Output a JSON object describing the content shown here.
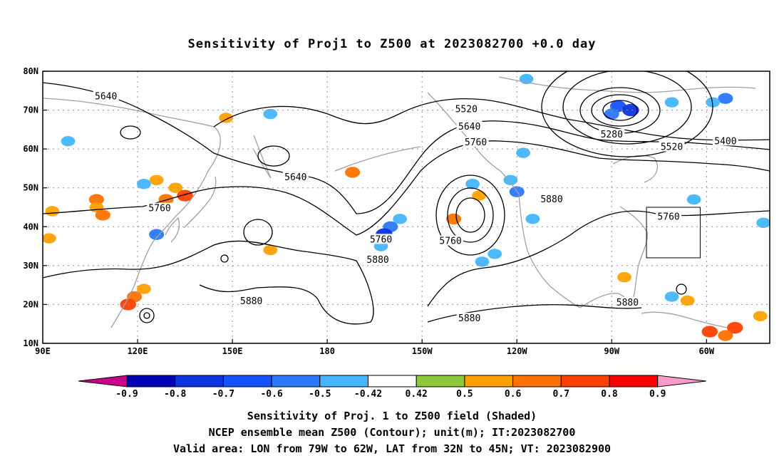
{
  "title": "Sensitivity of Proj1 to Z500 at 2023082700 +0.0 day",
  "lat_axis": {
    "labels": [
      "80N",
      "70N",
      "60N",
      "50N",
      "40N",
      "30N",
      "20N",
      "10N"
    ],
    "values": [
      80,
      70,
      60,
      50,
      40,
      30,
      20,
      10
    ]
  },
  "lon_axis": {
    "labels": [
      "90E",
      "120E",
      "150E",
      "180",
      "150W",
      "120W",
      "90W",
      "60W"
    ],
    "values": [
      90,
      120,
      150,
      180,
      210,
      240,
      270,
      300
    ]
  },
  "map_extent": {
    "lon_min": 90,
    "lon_max": 320,
    "lat_min": 10,
    "lat_max": 80
  },
  "contour_labels": [
    {
      "text": "5640",
      "lon": 110,
      "lat": 73.3
    },
    {
      "text": "5520",
      "lon": 224,
      "lat": 70.0
    },
    {
      "text": "5640",
      "lon": 225,
      "lat": 65.5
    },
    {
      "text": "5760",
      "lon": 227,
      "lat": 61.5
    },
    {
      "text": "5280",
      "lon": 270,
      "lat": 63.5
    },
    {
      "text": "5520",
      "lon": 289,
      "lat": 60.3
    },
    {
      "text": "5400",
      "lon": 306,
      "lat": 61.8
    },
    {
      "text": "5640",
      "lon": 170,
      "lat": 52.5
    },
    {
      "text": "5760",
      "lon": 127,
      "lat": 44.5
    },
    {
      "text": "5760",
      "lon": 197,
      "lat": 36.5
    },
    {
      "text": "5880",
      "lon": 196,
      "lat": 31.3
    },
    {
      "text": "5760",
      "lon": 219,
      "lat": 36.1
    },
    {
      "text": "5880",
      "lon": 251,
      "lat": 46.8
    },
    {
      "text": "5760",
      "lon": 288,
      "lat": 42.3
    },
    {
      "text": "5880",
      "lon": 156,
      "lat": 20.6
    },
    {
      "text": "5880",
      "lon": 225,
      "lat": 16.2
    },
    {
      "text": "5880",
      "lon": 275,
      "lat": 20.3
    }
  ],
  "valid_box": {
    "lon_w": 79,
    "lon_e": 62,
    "lat_s": 32,
    "lat_n": 45
  },
  "shading": [
    {
      "lon": 107,
      "lat": 47,
      "v": 0.6
    },
    {
      "lon": 107,
      "lat": 45,
      "v": 0.5
    },
    {
      "lon": 109,
      "lat": 43,
      "v": 0.6
    },
    {
      "lon": 93,
      "lat": 44,
      "v": 0.5
    },
    {
      "lon": 92,
      "lat": 37,
      "v": 0.5
    },
    {
      "lon": 98,
      "lat": 62,
      "v": -0.5
    },
    {
      "lon": 126,
      "lat": 52,
      "v": 0.5
    },
    {
      "lon": 132,
      "lat": 50,
      "v": 0.5
    },
    {
      "lon": 129,
      "lat": 47,
      "v": 0.6
    },
    {
      "lon": 135,
      "lat": 48,
      "v": 0.7
    },
    {
      "lon": 122,
      "lat": 51,
      "v": -0.5
    },
    {
      "lon": 126,
      "lat": 38,
      "v": -0.6
    },
    {
      "lon": 122,
      "lat": 24,
      "v": 0.5
    },
    {
      "lon": 119,
      "lat": 22,
      "v": 0.6
    },
    {
      "lon": 117,
      "lat": 20,
      "v": 0.7
    },
    {
      "lon": 148,
      "lat": 68,
      "v": 0.5
    },
    {
      "lon": 162,
      "lat": 69,
      "v": -0.5
    },
    {
      "lon": 188,
      "lat": 54,
      "v": 0.6
    },
    {
      "lon": 200,
      "lat": 40,
      "v": -0.6
    },
    {
      "lon": 198,
      "lat": 38,
      "v": -0.8
    },
    {
      "lon": 203,
      "lat": 42,
      "v": -0.5
    },
    {
      "lon": 197,
      "lat": 35,
      "v": -0.5
    },
    {
      "lon": 233,
      "lat": 33,
      "v": -0.5
    },
    {
      "lon": 229,
      "lat": 31,
      "v": -0.5
    },
    {
      "lon": 220,
      "lat": 42,
      "v": 0.6
    },
    {
      "lon": 240,
      "lat": 49,
      "v": -0.6
    },
    {
      "lon": 238,
      "lat": 52,
      "v": -0.5
    },
    {
      "lon": 245,
      "lat": 42,
      "v": -0.5
    },
    {
      "lon": 272,
      "lat": 71,
      "v": -0.7
    },
    {
      "lon": 276,
      "lat": 70,
      "v": -0.8
    },
    {
      "lon": 270,
      "lat": 69,
      "v": -0.6
    },
    {
      "lon": 306,
      "lat": 73,
      "v": -0.6
    },
    {
      "lon": 302,
      "lat": 72,
      "v": -0.5
    },
    {
      "lon": 289,
      "lat": 72,
      "v": -0.5
    },
    {
      "lon": 243,
      "lat": 78,
      "v": -0.5
    },
    {
      "lon": 242,
      "lat": 59,
      "v": -0.5
    },
    {
      "lon": 226,
      "lat": 51,
      "v": -0.5
    },
    {
      "lon": 228,
      "lat": 48,
      "v": 0.5
    },
    {
      "lon": 309,
      "lat": 14,
      "v": 0.7
    },
    {
      "lon": 306,
      "lat": 12,
      "v": 0.6
    },
    {
      "lon": 301,
      "lat": 13,
      "v": 0.7
    },
    {
      "lon": 294,
      "lat": 21,
      "v": 0.5
    },
    {
      "lon": 289,
      "lat": 22,
      "v": -0.5
    },
    {
      "lon": 317,
      "lat": 17,
      "v": 0.5
    },
    {
      "lon": 274,
      "lat": 27,
      "v": 0.5
    },
    {
      "lon": 318,
      "lat": 41,
      "v": -0.5
    },
    {
      "lon": 296,
      "lat": 47,
      "v": -0.5
    },
    {
      "lon": 162,
      "lat": 34,
      "v": 0.5
    }
  ],
  "colorbar": {
    "labels": [
      "-0.9",
      "-0.8",
      "-0.7",
      "-0.6",
      "-0.5",
      "-0.42",
      "0.42",
      "0.5",
      "0.6",
      "0.7",
      "0.8",
      "0.9"
    ],
    "colors": [
      "#0000b4",
      "#0c34e0",
      "#1552ff",
      "#2a78ff",
      "#43b6ff",
      "#ffffff",
      "#8cc83a",
      "#ffa000",
      "#ff7200",
      "#ff4000",
      "#ff0000"
    ],
    "low_end_color": "#c8008c",
    "high_end_color": "#ff9ac8"
  },
  "caption": {
    "line1": "Sensitivity of Proj. 1 to Z500 field (Shaded)",
    "line2": "NCEP ensemble mean Z500 (Contour); unit(m); IT:2023082700",
    "line3": "Valid area: LON from 79W to 62W, LAT from 32N to 45N; VT: 2023082900"
  }
}
